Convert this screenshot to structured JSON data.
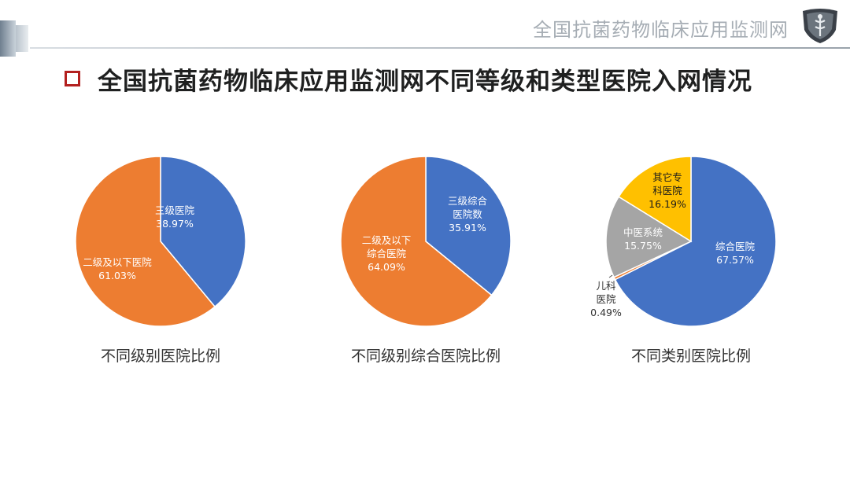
{
  "header": {
    "title": "全国抗菌药物临床应用监测网"
  },
  "slide": {
    "title": "全国抗菌药物临床应用监测网不同等级和类型医院入网情况"
  },
  "colors": {
    "blue": "#4472C4",
    "orange": "#ED7D31",
    "gray": "#A5A5A5",
    "yellow": "#FFC000",
    "accent_red": "#B3201F"
  },
  "chart_data": [
    {
      "type": "pie",
      "title": "不同级别医院比例",
      "series": [
        {
          "name": "三级医院",
          "value": 38.97,
          "label": "38.97%",
          "color": "#4472C4"
        },
        {
          "name": "二级及以下医院",
          "value": 61.03,
          "label": "61.03%",
          "color": "#ED7D31"
        }
      ]
    },
    {
      "type": "pie",
      "title": "不同级别综合医院比例",
      "series": [
        {
          "name": "三级综合医院数",
          "value": 35.91,
          "label": "35.91%",
          "color": "#4472C4"
        },
        {
          "name": "二级及以下综合医院",
          "value": 64.09,
          "label": "64.09%",
          "color": "#ED7D31"
        }
      ]
    },
    {
      "type": "pie",
      "title": "不同类别医院比例",
      "series": [
        {
          "name": "综合医院",
          "value": 67.57,
          "label": "67.57%",
          "color": "#4472C4"
        },
        {
          "name": "儿科医院",
          "value": 0.49,
          "label": "0.49%",
          "color": "#ED7D31"
        },
        {
          "name": "中医系统",
          "value": 15.75,
          "label": "15.75%",
          "color": "#A5A5A5"
        },
        {
          "name": "其它专科医院",
          "value": 16.19,
          "label": "16.19%",
          "color": "#FFC000"
        }
      ]
    }
  ]
}
